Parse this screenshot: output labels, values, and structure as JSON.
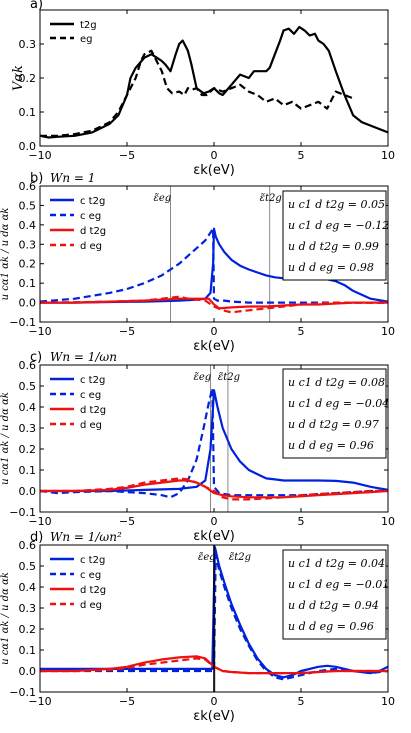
{
  "chart_data": [
    {
      "type": "line",
      "panel_label": "a)",
      "title": "",
      "xlabel": "εk(eV)",
      "ylabel": "Vαk",
      "xlim": [
        -10,
        10
      ],
      "ylim": [
        0.0,
        0.4
      ],
      "x_ticks": [
        "−10",
        "−5",
        "0",
        "5",
        "10"
      ],
      "y_ticks": [
        "0.0",
        "0.1",
        "0.2",
        "0.3"
      ],
      "legend_position": "top-left",
      "series": [
        {
          "name": "t2g",
          "color": "#000000",
          "style": "solid",
          "x": [
            -10,
            -9.5,
            -9,
            -8,
            -7,
            -6,
            -5.5,
            -5,
            -4.8,
            -4.5,
            -4,
            -3.6,
            -3.3,
            -3,
            -2.8,
            -2.5,
            -2.2,
            -2,
            -1.8,
            -1.5,
            -1.3,
            -1,
            -0.6,
            -0.3,
            0,
            0.3,
            0.5,
            1,
            1.5,
            2,
            2.3,
            2.6,
            3,
            3.2,
            3.5,
            3.8,
            4,
            4.3,
            4.6,
            4.9,
            5.2,
            5.5,
            5.8,
            6,
            6.3,
            6.6,
            7,
            7.5,
            8,
            8.5,
            9,
            9.5,
            10
          ],
          "y": [
            0.03,
            0.025,
            0.027,
            0.03,
            0.04,
            0.065,
            0.09,
            0.15,
            0.2,
            0.23,
            0.26,
            0.27,
            0.26,
            0.25,
            0.24,
            0.22,
            0.27,
            0.3,
            0.31,
            0.28,
            0.24,
            0.17,
            0.155,
            0.16,
            0.17,
            0.155,
            0.15,
            0.18,
            0.21,
            0.2,
            0.22,
            0.22,
            0.22,
            0.23,
            0.27,
            0.31,
            0.34,
            0.345,
            0.33,
            0.35,
            0.34,
            0.325,
            0.33,
            0.31,
            0.3,
            0.28,
            0.22,
            0.15,
            0.09,
            0.07,
            0.06,
            0.05,
            0.04
          ]
        },
        {
          "name": "eg",
          "color": "#000000",
          "style": "dashed",
          "x": [
            -10,
            -9,
            -8,
            -7,
            -6,
            -5.5,
            -5,
            -4.5,
            -4.2,
            -4,
            -3.6,
            -3.3,
            -3,
            -2.7,
            -2.4,
            -2,
            -1.7,
            -1.5,
            -1.3,
            -1,
            -0.7,
            -0.4,
            0,
            0.5,
            1,
            1.5,
            2,
            2.5,
            3,
            3.5,
            4,
            4.5,
            5,
            5.5,
            6,
            6.5,
            7,
            7.5,
            8
          ],
          "y": [
            0.03,
            0.03,
            0.035,
            0.045,
            0.07,
            0.1,
            0.15,
            0.2,
            0.25,
            0.27,
            0.28,
            0.25,
            0.22,
            0.17,
            0.155,
            0.16,
            0.15,
            0.17,
            0.165,
            0.17,
            0.15,
            0.15,
            0.17,
            0.16,
            0.17,
            0.18,
            0.16,
            0.15,
            0.13,
            0.14,
            0.12,
            0.13,
            0.11,
            0.12,
            0.13,
            0.11,
            0.16,
            0.15,
            0.14
          ]
        }
      ]
    },
    {
      "type": "line",
      "panel_label": "b)",
      "title": "Wn = 1",
      "xlabel": "εk(eV)",
      "ylabel": "u cα1 αk / u dα αk",
      "xlim": [
        -10,
        10
      ],
      "ylim": [
        -0.1,
        0.6
      ],
      "x_ticks": [
        "−10",
        "−5",
        "0",
        "5",
        "10"
      ],
      "y_ticks": [
        "−0.1",
        "0.0",
        "0.1",
        "0.2",
        "0.3",
        "0.4",
        "0.5",
        "0.6"
      ],
      "legend_position": "top-left",
      "vlines": [
        {
          "x": -2.5,
          "label": "ε̃eg"
        },
        {
          "x": 3.2,
          "label": "ε̃t2g"
        }
      ],
      "annotation_box": [
        "u c1 d t2g = 0.05",
        "u c1 d eg = −0.12",
        "u d d t2g = 0.99",
        "u d d eg = 0.98"
      ],
      "series": [
        {
          "name": "c t2g",
          "color": "#0022dd",
          "style": "solid",
          "x": [
            -10,
            -8,
            -6,
            -4,
            -2,
            -1,
            -0.5,
            -0.2,
            -0.05,
            0,
            0.1,
            0.3,
            0.6,
            1,
            1.5,
            2,
            2.5,
            3,
            3.5,
            4,
            5,
            6,
            6.5,
            7,
            7.5,
            8,
            9,
            10
          ],
          "y": [
            0.0,
            0.0,
            0.003,
            0.005,
            0.01,
            0.015,
            0.02,
            0.05,
            0.2,
            0.38,
            0.34,
            0.3,
            0.26,
            0.22,
            0.19,
            0.17,
            0.155,
            0.14,
            0.13,
            0.125,
            0.12,
            0.12,
            0.12,
            0.11,
            0.09,
            0.06,
            0.02,
            0.005
          ]
        },
        {
          "name": "c eg",
          "color": "#0022dd",
          "style": "dashed",
          "x": [
            -10,
            -8,
            -6,
            -5,
            -4,
            -3,
            -2.5,
            -2,
            -1.5,
            -1,
            -0.5,
            -0.2,
            -0.05,
            0,
            0.2,
            0.6,
            1,
            2,
            3,
            4,
            5,
            6,
            7,
            8,
            9,
            10
          ],
          "y": [
            0.005,
            0.02,
            0.05,
            0.07,
            0.1,
            0.14,
            0.17,
            0.2,
            0.24,
            0.28,
            0.32,
            0.36,
            0.38,
            0.02,
            0.01,
            0.01,
            0.005,
            0.0,
            0.0,
            0.0,
            0.0,
            0.0,
            0.0,
            0.0,
            0.0,
            0.0
          ]
        },
        {
          "name": "d t2g",
          "color": "#ee1111",
          "style": "solid",
          "x": [
            -10,
            -8,
            -6,
            -4,
            -2,
            -1,
            -0.3,
            0,
            0.3,
            1,
            2,
            3,
            4,
            5,
            6,
            7,
            8,
            9,
            10
          ],
          "y": [
            0.0,
            0.0,
            0.005,
            0.01,
            0.02,
            0.02,
            0.02,
            -0.01,
            -0.03,
            -0.025,
            -0.02,
            -0.02,
            -0.015,
            -0.01,
            -0.01,
            -0.005,
            0.0,
            0.0,
            0.0
          ]
        },
        {
          "name": "d eg",
          "color": "#ee1111",
          "style": "dashed",
          "x": [
            -10,
            -8,
            -6,
            -4,
            -3,
            -2,
            -1.5,
            -0.5,
            0,
            0.5,
            1,
            2,
            3,
            4,
            5,
            6,
            7,
            8,
            9,
            10
          ],
          "y": [
            0.0,
            0.002,
            0.005,
            0.01,
            0.02,
            0.03,
            0.02,
            0.01,
            -0.02,
            -0.04,
            -0.05,
            -0.04,
            -0.03,
            -0.02,
            -0.01,
            -0.005,
            0.0,
            0.0,
            0.0,
            0.0
          ]
        }
      ]
    },
    {
      "type": "line",
      "panel_label": "c)",
      "title": "Wn = 1/ωn",
      "xlabel": "εk(eV)",
      "ylabel": "u cα1 αk / u dα αk",
      "xlim": [
        -10,
        10
      ],
      "ylim": [
        -0.1,
        0.6
      ],
      "x_ticks": [
        "−10",
        "−5",
        "0",
        "5",
        "10"
      ],
      "y_ticks": [
        "−0.1",
        "0.0",
        "0.1",
        "0.2",
        "0.3",
        "0.4",
        "0.5",
        "0.6"
      ],
      "legend_position": "top-left",
      "vlines": [
        {
          "x": -0.2,
          "label": "ε̃eg"
        },
        {
          "x": 0.8,
          "label": "ε̃t2g"
        }
      ],
      "annotation_box": [
        "u c1 d t2g = 0.08",
        "u c1 d eg = −0.04",
        "u d d t2g = 0.97",
        "u d d eg = 0.96"
      ],
      "series": [
        {
          "name": "c t2g",
          "color": "#0022dd",
          "style": "solid",
          "x": [
            -10,
            -8,
            -6,
            -4,
            -2,
            -1,
            -0.5,
            -0.2,
            0,
            0.2,
            0.5,
            1,
            1.5,
            2,
            2.5,
            3,
            3.5,
            4,
            5,
            6,
            7,
            8,
            9,
            10
          ],
          "y": [
            0.0,
            0.0,
            0.0,
            0.005,
            0.01,
            0.02,
            0.05,
            0.2,
            0.48,
            0.4,
            0.3,
            0.2,
            0.14,
            0.1,
            0.08,
            0.06,
            0.055,
            0.05,
            0.05,
            0.05,
            0.048,
            0.04,
            0.02,
            0.005
          ]
        },
        {
          "name": "c eg",
          "color": "#0022dd",
          "style": "dashed",
          "x": [
            -10,
            -9,
            -8,
            -6,
            -4,
            -3,
            -2.5,
            -2,
            -1.5,
            -1,
            -0.6,
            -0.3,
            -0.1,
            0,
            0.3,
            1,
            2,
            3,
            4,
            5,
            6,
            7,
            8,
            9,
            10
          ],
          "y": [
            0.0,
            -0.01,
            -0.005,
            0.0,
            -0.01,
            -0.02,
            -0.03,
            -0.01,
            0.05,
            0.15,
            0.3,
            0.42,
            0.49,
            0.02,
            -0.01,
            -0.02,
            -0.02,
            -0.02,
            -0.02,
            -0.02,
            -0.015,
            -0.01,
            -0.005,
            0.0,
            0.0
          ]
        },
        {
          "name": "d t2g",
          "color": "#ee1111",
          "style": "solid",
          "x": [
            -10,
            -8,
            -6,
            -5,
            -4,
            -3,
            -2,
            -1.5,
            -1,
            -0.5,
            0,
            0.5,
            1,
            2,
            3,
            4,
            5,
            6,
            7,
            8,
            9,
            10
          ],
          "y": [
            0.0,
            0.0,
            0.005,
            0.015,
            0.03,
            0.04,
            0.05,
            0.05,
            0.04,
            0.02,
            -0.01,
            -0.02,
            -0.025,
            -0.03,
            -0.03,
            -0.03,
            -0.025,
            -0.02,
            -0.015,
            -0.01,
            -0.005,
            0.0
          ]
        },
        {
          "name": "d eg",
          "color": "#ee1111",
          "style": "dashed",
          "x": [
            -10,
            -8,
            -6,
            -5,
            -4,
            -3,
            -2,
            -1.5,
            -1,
            -0.5,
            0,
            0.5,
            1,
            2,
            3,
            4,
            5,
            6,
            7,
            8,
            9,
            10
          ],
          "y": [
            0.0,
            0.0,
            0.01,
            0.02,
            0.04,
            0.05,
            0.06,
            0.055,
            0.04,
            0.02,
            0.0,
            -0.03,
            -0.04,
            -0.04,
            -0.035,
            -0.03,
            -0.02,
            -0.015,
            -0.01,
            -0.005,
            0.0,
            0.0
          ]
        }
      ]
    },
    {
      "type": "line",
      "panel_label": "d)",
      "title": "Wn = 1/ωn²",
      "xlabel": "εk(eV)",
      "ylabel": "u cα1 αk / u dα αk",
      "xlim": [
        -10,
        10
      ],
      "ylim": [
        -0.1,
        0.6
      ],
      "x_ticks": [
        "−10",
        "−5",
        "0",
        "5",
        "10"
      ],
      "y_ticks": [
        "−0.1",
        "0.0",
        "0.1",
        "0.2",
        "0.3",
        "0.4",
        "0.5",
        "0.6"
      ],
      "legend_position": "top-left",
      "vlines": [
        {
          "x": 0.0,
          "label": "ε̃eg"
        },
        {
          "x": 0.05,
          "label": "ε̃t2g"
        }
      ],
      "annotation_box": [
        "u c1 d t2g = 0.04",
        "u c1 d eg = −0.01",
        "u d d t2g = 0.94",
        "u d d eg = 0.96"
      ],
      "series": [
        {
          "name": "c t2g",
          "color": "#0022dd",
          "style": "solid",
          "x": [
            -10,
            -8,
            -6,
            -4,
            -2,
            -1,
            -0.5,
            -0.1,
            0.05,
            0.3,
            0.6,
            1,
            1.5,
            2,
            2.5,
            3,
            3.5,
            4,
            4.5,
            5,
            6,
            6.5,
            7,
            8,
            9,
            9.5,
            10
          ],
          "y": [
            0.01,
            0.01,
            0.01,
            0.01,
            0.01,
            0.01,
            0.01,
            0.01,
            0.59,
            0.5,
            0.42,
            0.32,
            0.22,
            0.13,
            0.06,
            0.01,
            -0.02,
            -0.03,
            -0.02,
            0.0,
            0.02,
            0.025,
            0.02,
            0.0,
            -0.01,
            0.0,
            0.02
          ]
        },
        {
          "name": "c eg",
          "color": "#0022dd",
          "style": "dashed",
          "x": [
            -10,
            -8,
            -6,
            -4,
            -2,
            -1,
            -0.3,
            0,
            0.1,
            0.3,
            0.6,
            1,
            1.5,
            2,
            2.5,
            3,
            3.5,
            4,
            4.5,
            5,
            6,
            7,
            8,
            9,
            10
          ],
          "y": [
            0.0,
            0.0,
            0.0,
            0.0,
            0.0,
            0.0,
            0.0,
            0.0,
            0.55,
            0.48,
            0.4,
            0.3,
            0.2,
            0.12,
            0.05,
            0.0,
            -0.03,
            -0.04,
            -0.03,
            -0.02,
            0.0,
            0.01,
            0.0,
            -0.01,
            0.0
          ]
        },
        {
          "name": "d t2g",
          "color": "#ee1111",
          "style": "solid",
          "x": [
            -10,
            -8,
            -6,
            -5,
            -4,
            -3,
            -2,
            -1,
            -0.5,
            0,
            0.5,
            1,
            2,
            3,
            4,
            5,
            6,
            7,
            8,
            9,
            10
          ],
          "y": [
            0.0,
            0.0,
            0.01,
            0.02,
            0.04,
            0.055,
            0.065,
            0.07,
            0.06,
            0.02,
            0.0,
            -0.005,
            -0.01,
            -0.01,
            -0.01,
            -0.01,
            -0.005,
            0.0,
            0.0,
            0.0,
            0.0
          ]
        },
        {
          "name": "d eg",
          "color": "#ee1111",
          "style": "dashed",
          "x": [
            -10,
            -8,
            -6,
            -5,
            -4,
            -3,
            -2,
            -1,
            -0.5,
            0,
            0.5,
            1,
            2,
            3,
            4,
            5,
            6,
            7,
            8,
            9,
            10
          ],
          "y": [
            0.0,
            0.0,
            0.005,
            0.015,
            0.03,
            0.04,
            0.05,
            0.06,
            0.055,
            0.02,
            0.0,
            -0.005,
            -0.01,
            -0.01,
            -0.01,
            -0.01,
            -0.005,
            0.0,
            0.0,
            0.0,
            0.0
          ]
        }
      ]
    }
  ]
}
